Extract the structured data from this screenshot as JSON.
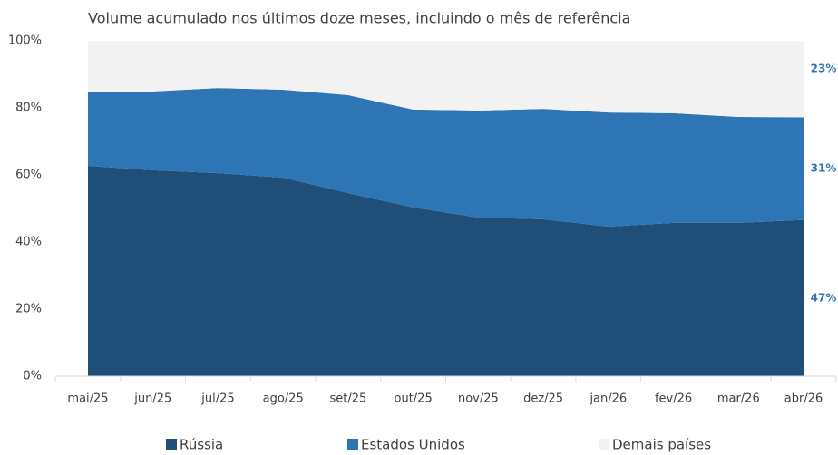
{
  "chart_data": {
    "type": "stacked_area",
    "title": "Volume acumulado nos últimos doze meses, incluindo o mês de referência",
    "categories": [
      "mai/25",
      "jun/25",
      "jul/25",
      "ago/25",
      "set/25",
      "out/25",
      "nov/25",
      "dez/25",
      "jan/26",
      "fev/26",
      "mar/26",
      "abr/26"
    ],
    "series": [
      {
        "name": "Rússia",
        "color": "#1f4e79",
        "values": [
          62.7,
          61.4,
          60.5,
          59.2,
          54.6,
          50.3,
          47.3,
          46.8,
          44.6,
          45.7,
          45.7,
          46.6
        ],
        "value_labels": [
          null,
          null,
          null,
          null,
          null,
          null,
          null,
          null,
          null,
          null,
          null,
          "47%"
        ]
      },
      {
        "name": "Estados Unidos",
        "color": "#2e75b6",
        "values": [
          21.9,
          23.5,
          25.4,
          26.2,
          29.2,
          29.2,
          31.9,
          32.9,
          34.0,
          32.7,
          31.6,
          30.6
        ],
        "value_labels": [
          null,
          null,
          null,
          null,
          null,
          null,
          null,
          null,
          null,
          null,
          null,
          "31%"
        ]
      },
      {
        "name": "Demais países",
        "color": "#f2f2f2",
        "values": [
          15.4,
          15.1,
          14.1,
          14.6,
          16.2,
          20.5,
          20.8,
          20.3,
          21.4,
          21.6,
          22.7,
          22.8
        ],
        "value_labels": [
          null,
          null,
          null,
          null,
          null,
          null,
          null,
          null,
          null,
          null,
          null,
          "23%"
        ]
      }
    ],
    "ylim": [
      0,
      100
    ],
    "yticks": [
      {
        "value": 0,
        "label": "0%"
      },
      {
        "value": 20,
        "label": "20%"
      },
      {
        "value": 40,
        "label": "40%"
      },
      {
        "value": 60,
        "label": "60%"
      },
      {
        "value": 80,
        "label": "80%"
      },
      {
        "value": 100,
        "label": "100%"
      }
    ],
    "legend": "bottom"
  }
}
